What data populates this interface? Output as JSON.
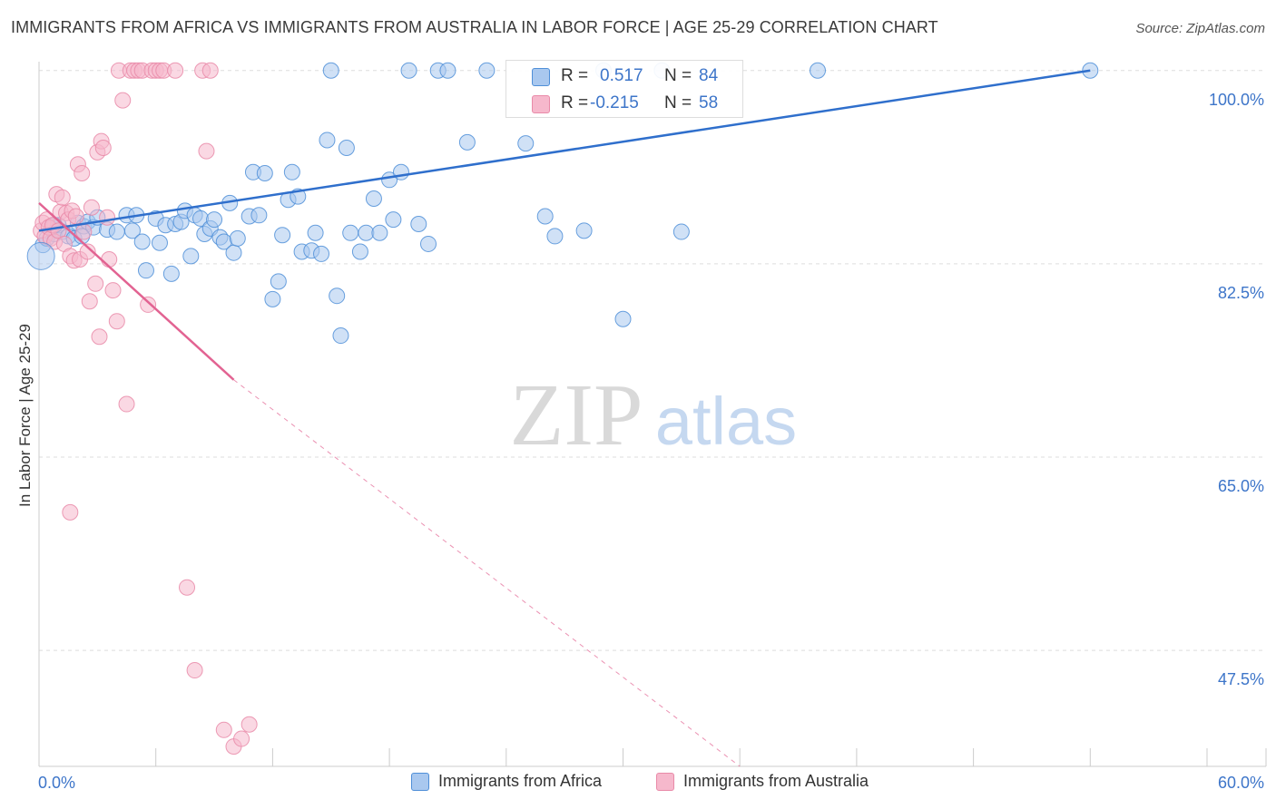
{
  "title": "IMMIGRANTS FROM AFRICA VS IMMIGRANTS FROM AUSTRALIA IN LABOR FORCE | AGE 25-29 CORRELATION CHART",
  "source": "Source: ZipAtlas.com",
  "watermark": {
    "zip": "ZIP",
    "atlas": "atlas"
  },
  "colors": {
    "blue": "#4f8fd8",
    "blue_fill": "#a9c8ef",
    "blue_line": "#2f6fcc",
    "pink": "#e98aa8",
    "pink_fill": "#f6b8cc",
    "pink_line": "#e26392",
    "tick_label": "#3d75c9",
    "grid": "#dddddd"
  },
  "stats": {
    "r_label": "R =",
    "n_label": "N =",
    "rows": [
      {
        "series": "Immigrants from Africa",
        "r": "0.517",
        "n": "84"
      },
      {
        "series": "Immigrants from Australia",
        "r": "-0.215",
        "n": "58"
      }
    ]
  },
  "chart_data": {
    "type": "scatter",
    "title": "IMMIGRANTS FROM AFRICA VS IMMIGRANTS FROM AUSTRALIA IN LABOR FORCE | AGE 25-29 CORRELATION CHART",
    "xlabel": "",
    "ylabel": "In Labor Force | Age 25-29",
    "xlim": [
      0,
      60
    ],
    "ylim": [
      37.0,
      100.8
    ],
    "x_tick_labels": [
      "0.0%",
      "60.0%"
    ],
    "y_ticks": [
      100.0,
      82.5,
      65.0,
      47.5
    ],
    "y_tick_labels": [
      "100.0%",
      "82.5%",
      "65.0%",
      "47.5%"
    ],
    "grid": true,
    "legend_position": "bottom",
    "series": [
      {
        "name": "Immigrants from Africa",
        "color": "#4f8fd8",
        "trendline": {
          "x": [
            0.0,
            54.0
          ],
          "y": [
            85.5,
            100.0
          ]
        },
        "points": [
          [
            0.2,
            84.2
          ],
          [
            0.4,
            84.8
          ],
          [
            0.6,
            85.7
          ],
          [
            0.8,
            85.2
          ],
          [
            1.0,
            86.0
          ],
          [
            1.2,
            85.4
          ],
          [
            1.5,
            85.0
          ],
          [
            1.8,
            84.8
          ],
          [
            2.0,
            86.2
          ],
          [
            2.3,
            85.9
          ],
          [
            2.5,
            86.3
          ],
          [
            2.8,
            85.8
          ],
          [
            3.0,
            86.7
          ],
          [
            3.5,
            85.6
          ],
          [
            4.0,
            85.4
          ],
          [
            4.5,
            86.9
          ],
          [
            4.8,
            85.5
          ],
          [
            5.0,
            86.9
          ],
          [
            5.3,
            84.5
          ],
          [
            5.5,
            81.9
          ],
          [
            6.0,
            86.6
          ],
          [
            6.2,
            84.4
          ],
          [
            6.5,
            86.0
          ],
          [
            6.8,
            81.6
          ],
          [
            7.0,
            86.1
          ],
          [
            7.3,
            86.3
          ],
          [
            7.5,
            87.3
          ],
          [
            7.8,
            83.2
          ],
          [
            8.0,
            86.9
          ],
          [
            8.3,
            86.6
          ],
          [
            8.5,
            85.2
          ],
          [
            8.8,
            85.7
          ],
          [
            9.0,
            86.5
          ],
          [
            9.3,
            84.9
          ],
          [
            9.5,
            84.5
          ],
          [
            9.8,
            88.0
          ],
          [
            10.0,
            83.5
          ],
          [
            10.2,
            84.8
          ],
          [
            10.8,
            86.8
          ],
          [
            11.0,
            90.8
          ],
          [
            11.3,
            86.9
          ],
          [
            11.6,
            90.7
          ],
          [
            12.0,
            79.3
          ],
          [
            12.3,
            80.9
          ],
          [
            12.5,
            85.1
          ],
          [
            12.8,
            88.3
          ],
          [
            13.0,
            90.8
          ],
          [
            13.3,
            88.6
          ],
          [
            13.5,
            83.6
          ],
          [
            14.0,
            83.7
          ],
          [
            14.2,
            85.3
          ],
          [
            14.5,
            83.4
          ],
          [
            14.8,
            93.7
          ],
          [
            15.0,
            100.0
          ],
          [
            15.3,
            79.6
          ],
          [
            15.5,
            76.0
          ],
          [
            15.8,
            93.0
          ],
          [
            16.0,
            85.3
          ],
          [
            16.5,
            83.6
          ],
          [
            16.8,
            85.3
          ],
          [
            17.2,
            88.4
          ],
          [
            17.5,
            85.3
          ],
          [
            18.0,
            90.1
          ],
          [
            18.2,
            86.5
          ],
          [
            18.6,
            90.8
          ],
          [
            19.0,
            100.0
          ],
          [
            19.5,
            86.1
          ],
          [
            20.0,
            84.3
          ],
          [
            20.5,
            100.0
          ],
          [
            21.0,
            100.0
          ],
          [
            22.0,
            93.5
          ],
          [
            23.0,
            100.0
          ],
          [
            25.0,
            93.4
          ],
          [
            26.0,
            86.8
          ],
          [
            26.5,
            85.0
          ],
          [
            28.0,
            85.5
          ],
          [
            29.0,
            100.0
          ],
          [
            30.0,
            77.5
          ],
          [
            32.0,
            100.0
          ],
          [
            33.0,
            85.4
          ],
          [
            40.0,
            100.0
          ],
          [
            54.0,
            100.0
          ],
          [
            0.8,
            86.0
          ],
          [
            2.2,
            85.0
          ]
        ]
      },
      {
        "name": "Immigrants from Australia",
        "color": "#e98aa8",
        "trendline": {
          "x": [
            0.0,
            10.0
          ],
          "y": [
            88.0,
            72.0
          ],
          "dashed_to": {
            "x": 36.0,
            "y": 37.0
          }
        },
        "points": [
          [
            0.1,
            85.5
          ],
          [
            0.2,
            86.2
          ],
          [
            0.3,
            85.0
          ],
          [
            0.4,
            86.5
          ],
          [
            0.5,
            85.8
          ],
          [
            0.6,
            84.8
          ],
          [
            0.7,
            86.0
          ],
          [
            0.8,
            84.5
          ],
          [
            0.9,
            88.8
          ],
          [
            1.0,
            85.5
          ],
          [
            1.1,
            87.2
          ],
          [
            1.2,
            88.5
          ],
          [
            1.3,
            84.3
          ],
          [
            1.4,
            87.1
          ],
          [
            1.5,
            86.5
          ],
          [
            1.6,
            83.2
          ],
          [
            1.7,
            87.3
          ],
          [
            1.8,
            82.8
          ],
          [
            1.9,
            86.8
          ],
          [
            2.0,
            91.5
          ],
          [
            2.1,
            82.9
          ],
          [
            2.2,
            90.7
          ],
          [
            2.3,
            85.4
          ],
          [
            2.5,
            83.6
          ],
          [
            2.6,
            79.1
          ],
          [
            2.7,
            87.6
          ],
          [
            2.9,
            80.7
          ],
          [
            3.0,
            92.6
          ],
          [
            3.1,
            75.9
          ],
          [
            3.2,
            93.6
          ],
          [
            3.3,
            93.0
          ],
          [
            3.5,
            86.7
          ],
          [
            3.6,
            82.9
          ],
          [
            3.8,
            80.1
          ],
          [
            4.0,
            77.3
          ],
          [
            4.1,
            100.0
          ],
          [
            4.3,
            97.3
          ],
          [
            4.5,
            69.8
          ],
          [
            4.7,
            100.0
          ],
          [
            4.9,
            100.0
          ],
          [
            5.1,
            100.0
          ],
          [
            5.3,
            100.0
          ],
          [
            5.6,
            78.8
          ],
          [
            5.8,
            100.0
          ],
          [
            6.0,
            100.0
          ],
          [
            6.2,
            100.0
          ],
          [
            6.4,
            100.0
          ],
          [
            7.0,
            100.0
          ],
          [
            7.6,
            53.2
          ],
          [
            8.0,
            45.7
          ],
          [
            8.4,
            100.0
          ],
          [
            8.6,
            92.7
          ],
          [
            8.8,
            100.0
          ],
          [
            9.5,
            40.3
          ],
          [
            10.0,
            38.8
          ],
          [
            10.4,
            39.5
          ],
          [
            10.8,
            40.8
          ],
          [
            1.6,
            60.0
          ]
        ]
      }
    ]
  }
}
